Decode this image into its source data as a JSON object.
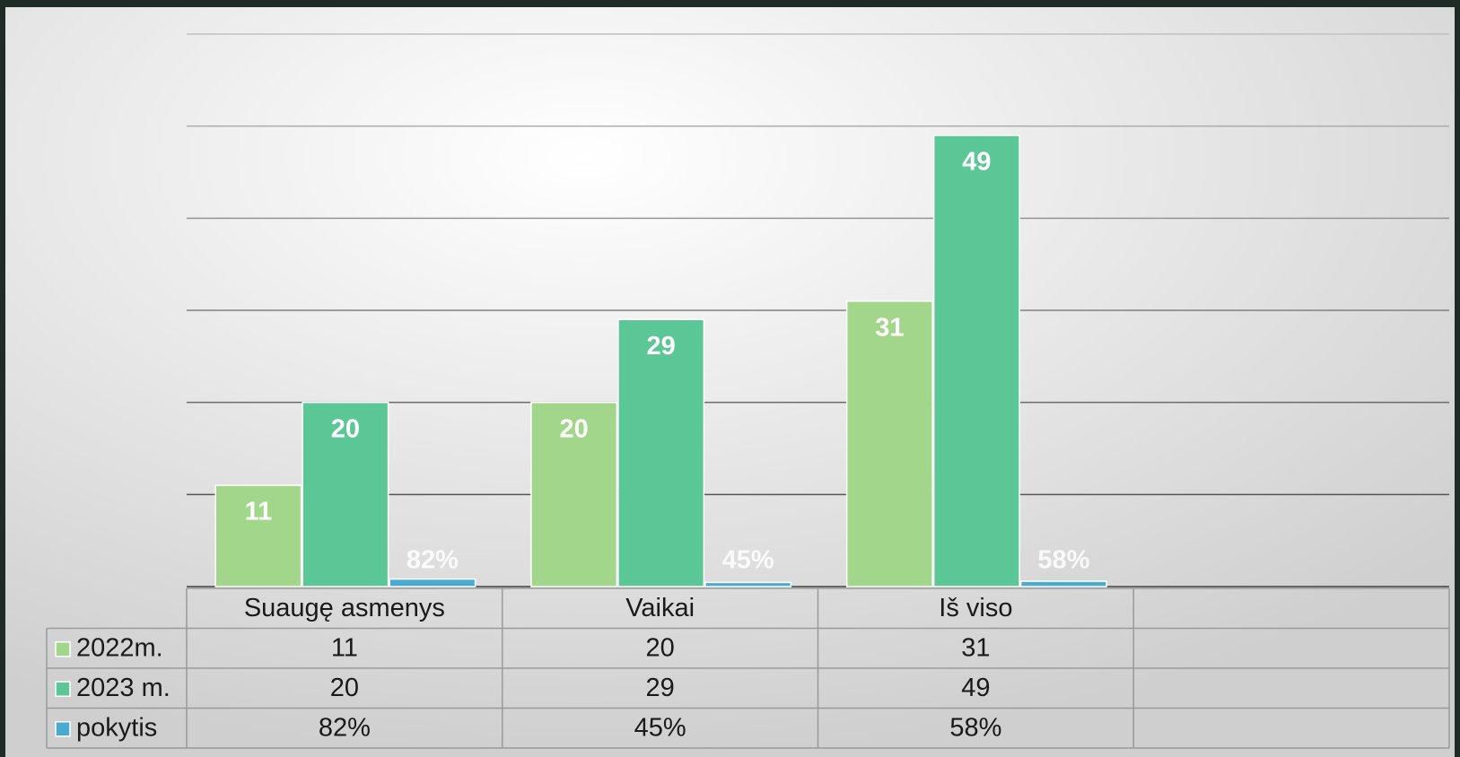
{
  "chart_data": {
    "type": "bar",
    "categories": [
      "Suaugę asmenys",
      "Vaikai",
      "Iš viso",
      null
    ],
    "series": [
      {
        "name": "2022m.",
        "color": "#a2d78b",
        "values": [
          11,
          20,
          31,
          null
        ]
      },
      {
        "name": "2023 m.",
        "color": "#5cc796",
        "values": [
          20,
          29,
          49,
          null
        ]
      },
      {
        "name": "pokytis",
        "color": "#4aaad0",
        "values": [
          0.82,
          0.45,
          0.58,
          null
        ],
        "value_labels": [
          "82%",
          "45%",
          "58%",
          null
        ]
      }
    ],
    "ylim": [
      0,
      60
    ],
    "yticks": [
      0,
      10,
      20,
      30,
      40,
      50,
      60
    ],
    "grid": true,
    "data_table": true
  }
}
